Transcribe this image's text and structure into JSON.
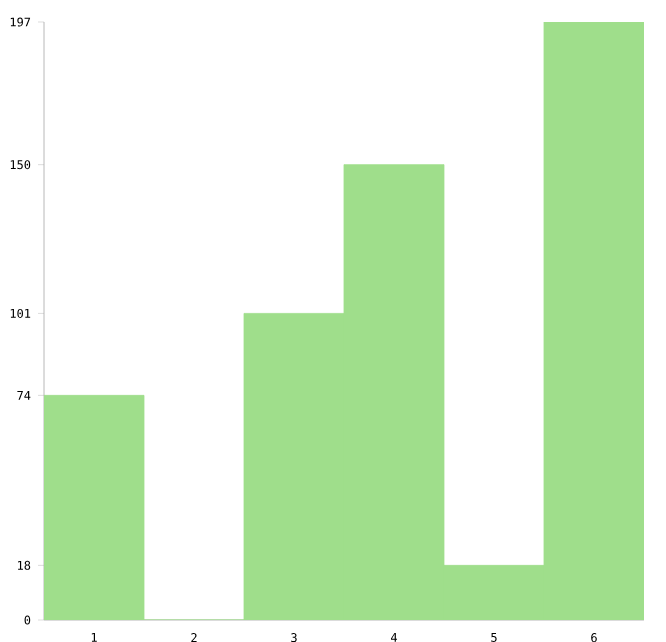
{
  "chart_data": {
    "type": "bar",
    "categories": [
      "1",
      "2",
      "3",
      "4",
      "5",
      "6"
    ],
    "values": [
      74,
      0,
      101,
      150,
      18,
      197
    ],
    "color": "#9fde8b",
    "ylim": [
      0,
      197
    ],
    "yticks": [
      0,
      18,
      74,
      101,
      150,
      197
    ]
  }
}
